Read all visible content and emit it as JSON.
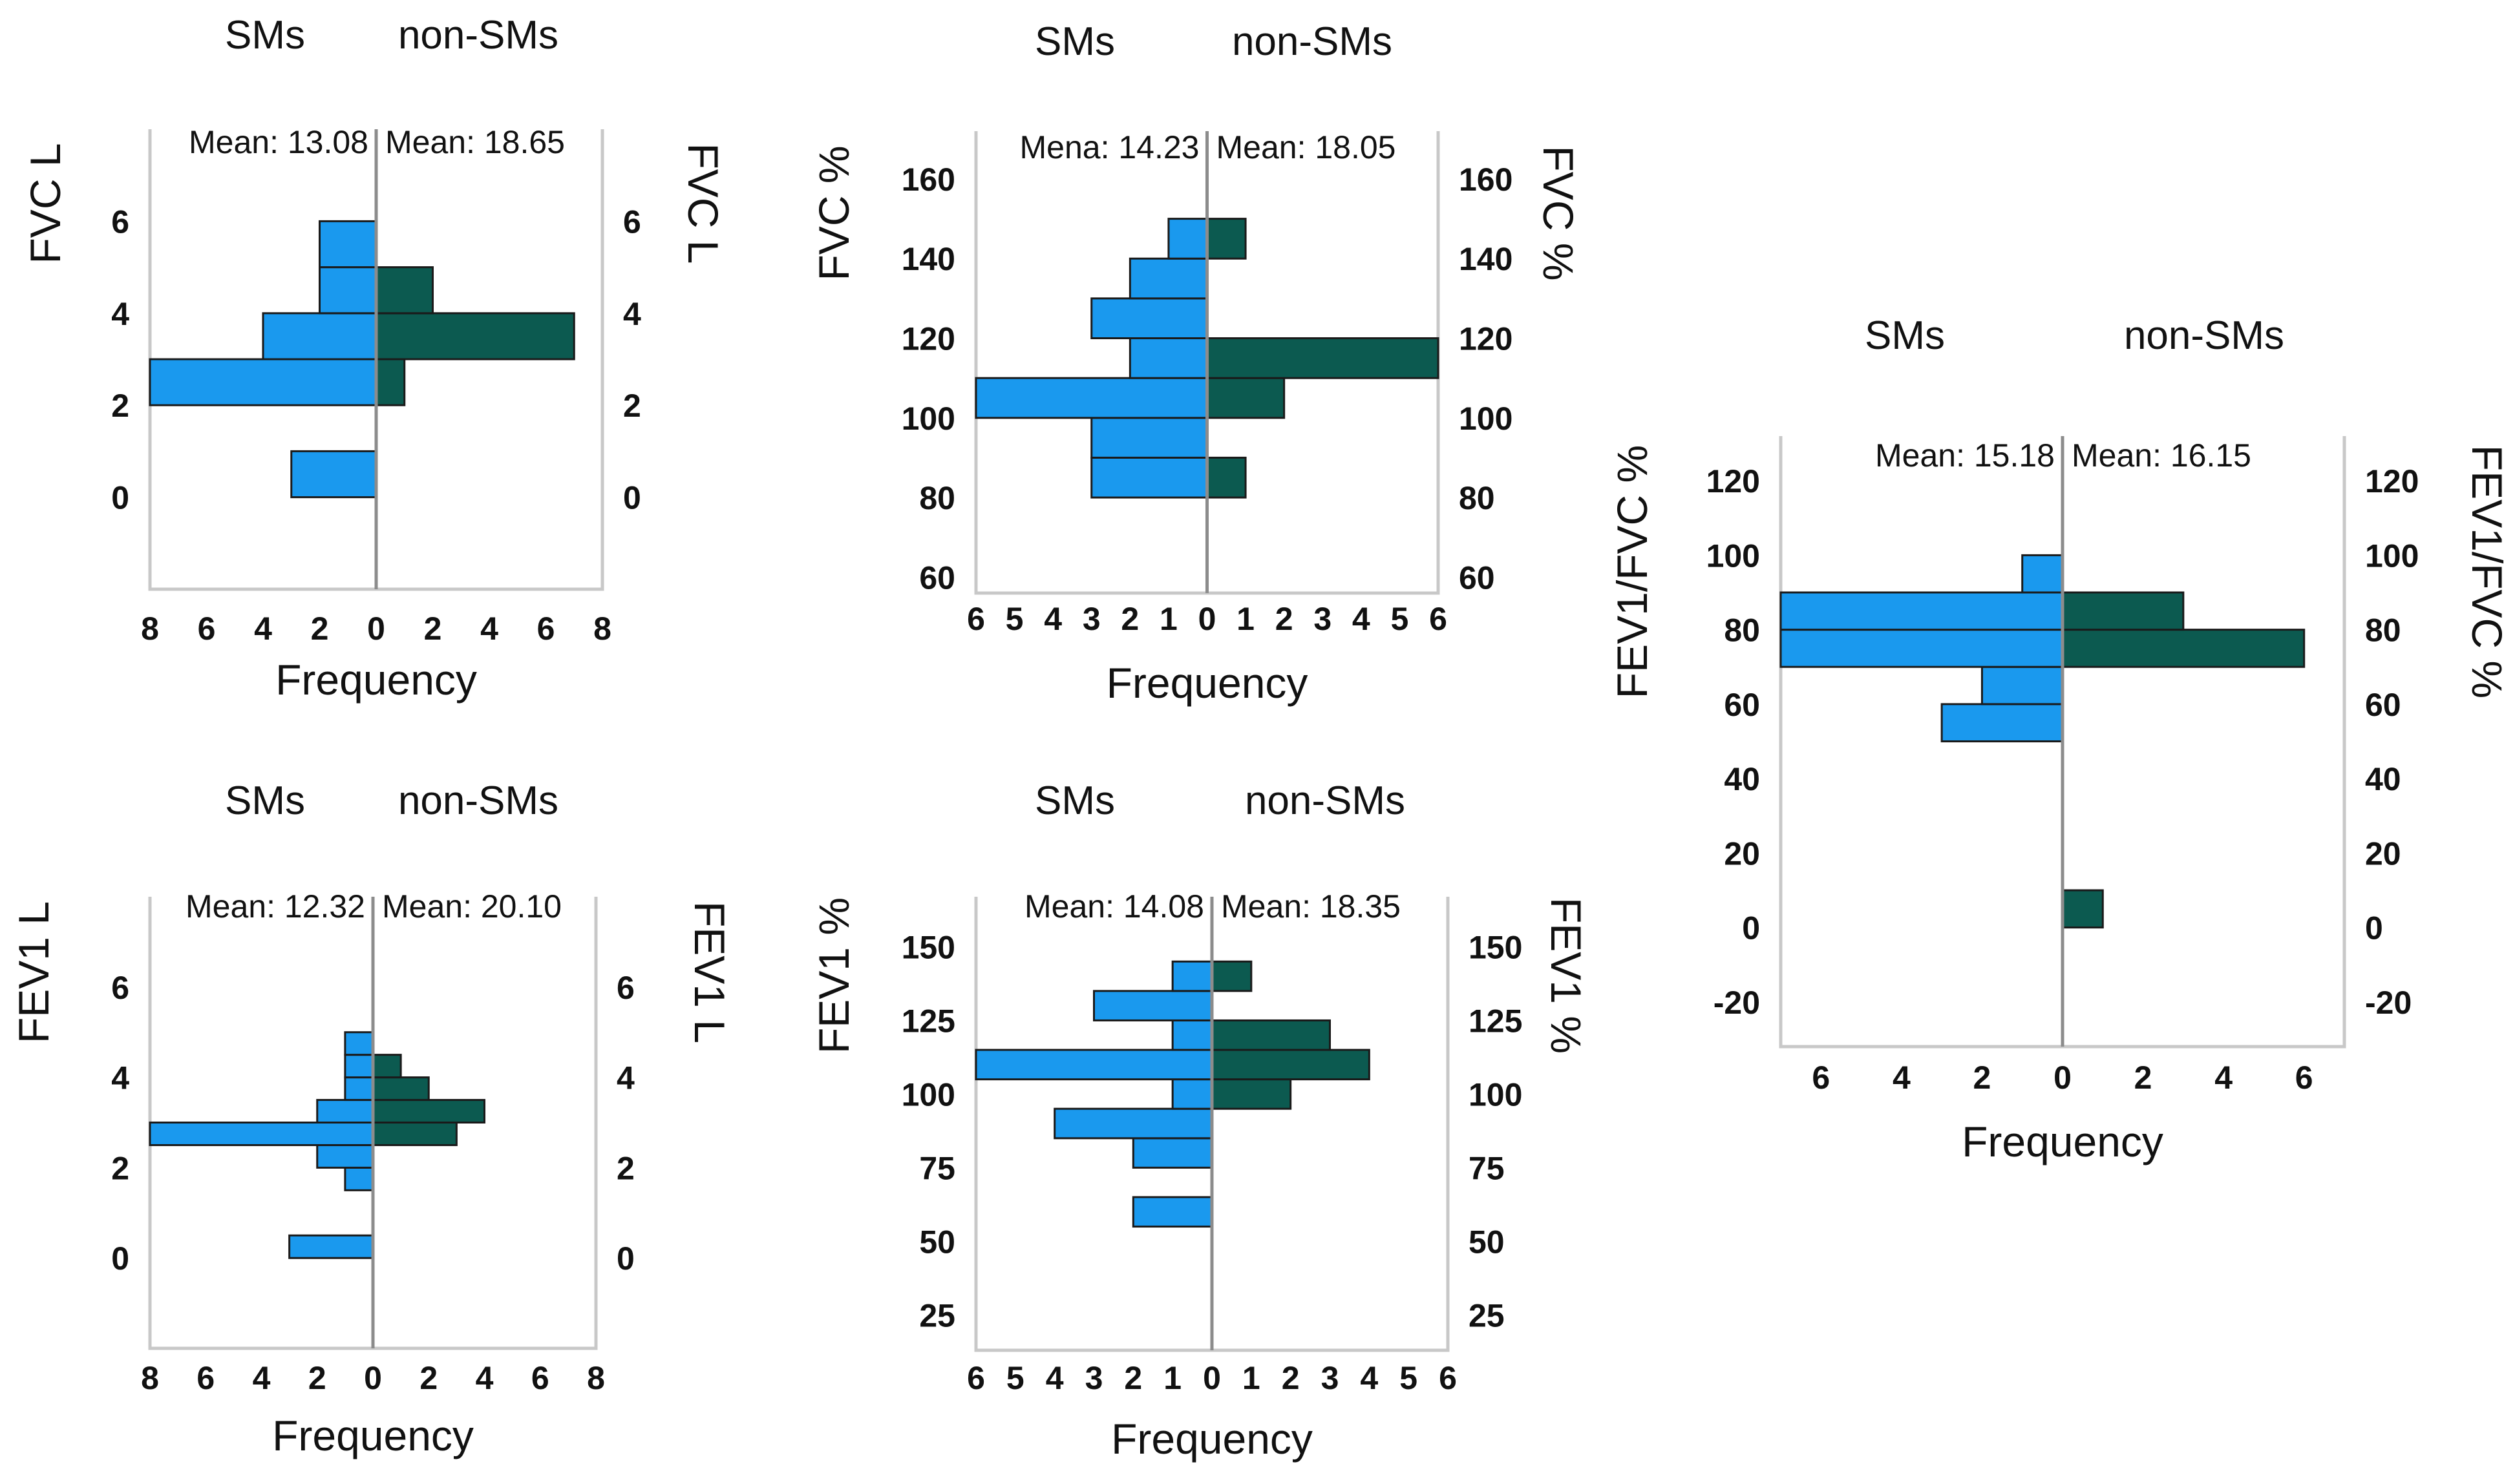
{
  "colors": {
    "sms": "#1a99ee",
    "non_sms": "#0c5a50",
    "frame": "#c8c8c8",
    "center_line": "#8c8c8c",
    "bar_edge": "#1a1a1a"
  },
  "chart_data": [
    {
      "type": "bar",
      "orientation": "pyramid",
      "variable": "FVC L",
      "left_group": "SMs",
      "right_group": "non-SMs",
      "left_mean_label": "Mean: 13.08",
      "right_mean_label": "Mean: 18.65",
      "xlabel": "Frequency",
      "ylabel_left": "FVC L",
      "ylabel_right": "FVC L",
      "xlim": [
        0,
        8
      ],
      "ylim": [
        -2,
        8
      ],
      "yticks": [
        0,
        2,
        4,
        6
      ],
      "xticks_left": [
        "8",
        "6",
        "4",
        "2",
        "0"
      ],
      "xticks_right": [
        "0",
        "2",
        "4",
        "6",
        "8"
      ],
      "bin_width": 1,
      "bins_left": [
        {
          "center": 0.5,
          "value": 3
        },
        {
          "center": 2.5,
          "value": 8
        },
        {
          "center": 3.5,
          "value": 4
        },
        {
          "center": 4.5,
          "value": 2
        },
        {
          "center": 5.5,
          "value": 2
        }
      ],
      "bins_right": [
        {
          "center": 2.5,
          "value": 1
        },
        {
          "center": 3.5,
          "value": 7
        },
        {
          "center": 4.5,
          "value": 2
        }
      ]
    },
    {
      "type": "bar",
      "orientation": "pyramid",
      "variable": "FVC %",
      "left_group": "SMs",
      "right_group": "non-SMs",
      "left_mean_label": "Mena: 14.23",
      "right_mean_label": "Mean: 18.05",
      "xlabel": "Frequency",
      "ylabel_left": "FVC %",
      "ylabel_right": "FVC %",
      "xlim": [
        0,
        6
      ],
      "ylim": [
        56,
        172
      ],
      "yticks": [
        60,
        80,
        100,
        120,
        140,
        160
      ],
      "xticks_left": [
        "6",
        "5",
        "4",
        "3",
        "2",
        "1",
        "0"
      ],
      "xticks_right": [
        "0",
        "1",
        "2",
        "3",
        "4",
        "5",
        "6"
      ],
      "bin_width": 10,
      "bins_left": [
        {
          "center": 85,
          "value": 3
        },
        {
          "center": 95,
          "value": 3
        },
        {
          "center": 105,
          "value": 6
        },
        {
          "center": 115,
          "value": 2
        },
        {
          "center": 125,
          "value": 3
        },
        {
          "center": 135,
          "value": 2
        },
        {
          "center": 145,
          "value": 1
        }
      ],
      "bins_right": [
        {
          "center": 85,
          "value": 1
        },
        {
          "center": 105,
          "value": 2
        },
        {
          "center": 115,
          "value": 6
        },
        {
          "center": 145,
          "value": 1
        }
      ]
    },
    {
      "type": "bar",
      "orientation": "pyramid",
      "variable": "FEV1 L",
      "left_group": "SMs",
      "right_group": "non-SMs",
      "left_mean_label": "Mean: 12.32",
      "right_mean_label": "Mean: 20.10",
      "xlabel": "Frequency",
      "ylabel_left": "FEV1 L",
      "ylabel_right": "FEV1 L",
      "xlim": [
        0,
        8
      ],
      "ylim": [
        -2,
        8
      ],
      "yticks": [
        0,
        2,
        4,
        6
      ],
      "xticks_left": [
        "8",
        "6",
        "4",
        "2",
        "0"
      ],
      "xticks_right": [
        "0",
        "2",
        "4",
        "6",
        "8"
      ],
      "bin_width": 0.5,
      "bins_left": [
        {
          "center": 0.25,
          "value": 3
        },
        {
          "center": 1.75,
          "value": 1
        },
        {
          "center": 2.25,
          "value": 2
        },
        {
          "center": 2.75,
          "value": 8
        },
        {
          "center": 3.25,
          "value": 2
        },
        {
          "center": 3.75,
          "value": 1
        },
        {
          "center": 4.25,
          "value": 1
        },
        {
          "center": 4.75,
          "value": 1
        }
      ],
      "bins_right": [
        {
          "center": 2.75,
          "value": 3
        },
        {
          "center": 3.25,
          "value": 4
        },
        {
          "center": 3.75,
          "value": 2
        },
        {
          "center": 4.25,
          "value": 1
        }
      ]
    },
    {
      "type": "bar",
      "orientation": "pyramid",
      "variable": "FEV1 %",
      "left_group": "SMs",
      "right_group": "non-SMs",
      "left_mean_label": "Mean: 14.08",
      "right_mean_label": "Mean: 18.35",
      "xlabel": "Frequency",
      "ylabel_left": "FEV1 %",
      "ylabel_right": "FEV1 %",
      "xlim": [
        0,
        6
      ],
      "ylim": [
        13,
        167
      ],
      "yticks": [
        25,
        50,
        75,
        100,
        125,
        150
      ],
      "xticks_left": [
        "6",
        "5",
        "4",
        "3",
        "2",
        "1",
        "0"
      ],
      "xticks_right": [
        "0",
        "1",
        "2",
        "3",
        "4",
        "5",
        "6"
      ],
      "bin_width": 10,
      "bins_left": [
        {
          "center": 60,
          "value": 2
        },
        {
          "center": 80,
          "value": 2
        },
        {
          "center": 90,
          "value": 4
        },
        {
          "center": 100,
          "value": 1
        },
        {
          "center": 110,
          "value": 6
        },
        {
          "center": 120,
          "value": 1
        },
        {
          "center": 130,
          "value": 3
        },
        {
          "center": 140,
          "value": 1
        }
      ],
      "bins_right": [
        {
          "center": 100,
          "value": 2
        },
        {
          "center": 110,
          "value": 4
        },
        {
          "center": 120,
          "value": 3
        },
        {
          "center": 140,
          "value": 1
        }
      ]
    },
    {
      "type": "bar",
      "orientation": "pyramid",
      "variable": "FEV1/FVC %",
      "left_group": "SMs",
      "right_group": "non-SMs",
      "left_mean_label": "Mean: 15.18",
      "right_mean_label": "Mean: 16.15",
      "xlabel": "Frequency",
      "ylabel_left": "FEV1/FVC %",
      "ylabel_right": "FEV1/FVC %",
      "xlim": [
        0,
        7
      ],
      "ylim": [
        -32,
        132
      ],
      "yticks": [
        -20,
        0,
        20,
        40,
        60,
        80,
        100,
        120
      ],
      "xticks_left": [
        "6",
        "4",
        "2",
        "0"
      ],
      "xticks_right": [
        "0",
        "2",
        "4",
        "6"
      ],
      "bin_width": 10,
      "bins_left": [
        {
          "center": 55,
          "value": 3
        },
        {
          "center": 65,
          "value": 2
        },
        {
          "center": 75,
          "value": 7
        },
        {
          "center": 85,
          "value": 7
        },
        {
          "center": 95,
          "value": 1
        }
      ],
      "bins_right": [
        {
          "center": 5,
          "value": 1
        },
        {
          "center": 75,
          "value": 6
        },
        {
          "center": 85,
          "value": 3
        }
      ]
    }
  ]
}
